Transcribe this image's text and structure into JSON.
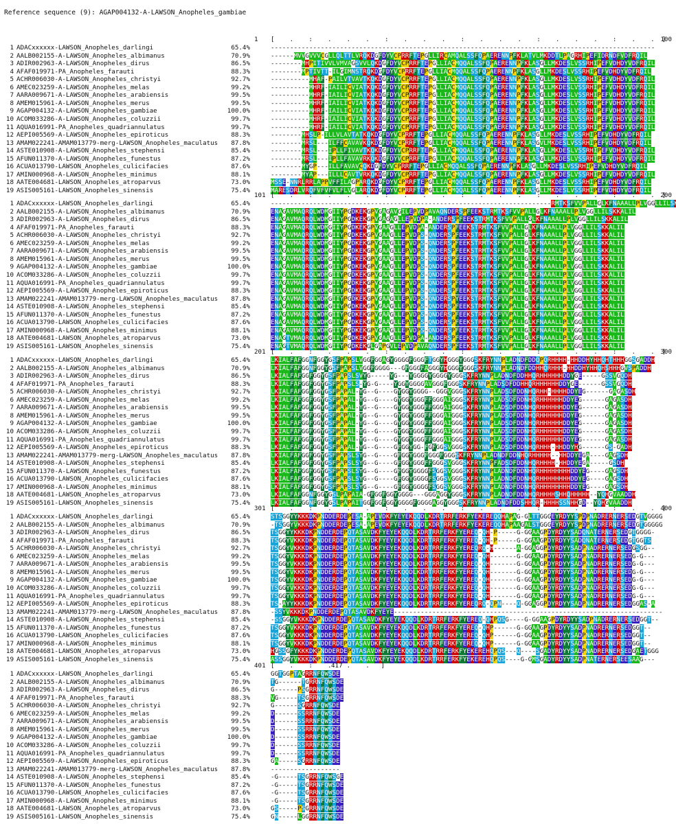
{
  "title": "Reference sequence (9): AGAP004132-A-LAWSON_Anopheles_gambiae",
  "sequences": [
    {
      "n": "1",
      "name": "ADACxxxxxx-LAWSON_Anopheles_darlingi",
      "pct": "65.4%"
    },
    {
      "n": "2",
      "name": "AALB002155-A-LAWSON_Anopheles_albimanus",
      "pct": "70.9%"
    },
    {
      "n": "3",
      "name": "ADIR002963-A-LAWSON_Anopheles_dirus",
      "pct": "86.5%"
    },
    {
      "n": "4",
      "name": "AFAF019971-PA_Anopheles_farauti",
      "pct": "88.3%"
    },
    {
      "n": "5",
      "name": "ACHR006030-A-LAWSON_Anopheles_christyi",
      "pct": "92.7%"
    },
    {
      "n": "6",
      "name": "AMEC023259-A-LAWSON_Anopheles_melas",
      "pct": "99.2%"
    },
    {
      "n": "7",
      "name": "AARA009671-A-LAWSON_Anopheles_arabiensis",
      "pct": "99.5%"
    },
    {
      "n": "8",
      "name": "AMEM015961-A-LAWSON_Anopheles_merus",
      "pct": "99.5%"
    },
    {
      "n": "9",
      "name": "AGAP004132-A-LAWSON_Anopheles_gambiae",
      "pct": "100.0%"
    },
    {
      "n": "10",
      "name": "ACOM033286-A-LAWSON_Anopheles_coluzzii",
      "pct": "99.7%"
    },
    {
      "n": "11",
      "name": "AQUA016991-PA_Anopheles_quadriannulatus",
      "pct": "99.7%"
    },
    {
      "n": "12",
      "name": "AEPI005569-A-LAWSON_Anopheles_epiroticus",
      "pct": "88.3%"
    },
    {
      "n": "13",
      "name": "AMAM022241-AMAM013779-merg-LAWSON_Anopheles_maculatus",
      "pct": "87.8%"
    },
    {
      "n": "14",
      "name": "ASTE010908-A-LAWSON_Anopheles_stephensi",
      "pct": "85.4%"
    },
    {
      "n": "15",
      "name": "AFUN011370-A-LAWSON_Anopheles_funestus",
      "pct": "87.2%"
    },
    {
      "n": "16",
      "name": "ACUA013790-LAWSON_Anopheles_culicifacies",
      "pct": "87.6%"
    },
    {
      "n": "17",
      "name": "AMIN000968-A-LAWSON_Anopheles_minimus",
      "pct": "88.1%"
    },
    {
      "n": "18",
      "name": "AATE004681-LAWSON_Anopheles_atroparvus",
      "pct": "73.0%"
    },
    {
      "n": "19",
      "name": "ASIS005161-LAWSON_Anopheles_sinensis",
      "pct": "75.4%"
    }
  ],
  "blocks": [
    {
      "start": "1",
      "end": "100",
      "ruler": "[    .    :    .    .    .    :    .    .    .    :    .    .    .    :    .    .    .    :    .    .  ]",
      "rows": [
        "----------------------------------------------------------------------------------------------------",
        "------MVVGVVVCGLLQLTTLVRQKDGFDYVCPRRFTEPGLLIRCAMQALSSFQPAERENNPFKLATVLMKDDTLPAGRHIPEFIDRNDFVDFRQIL",
        "--------MHPITIVVLVMVAGSVVLQKDGFDYVCPRRFTEPGLLIACMQQALSSFQPAERENNPFKLASGLLMKDESLVSSRHIPEFVDHDYVDFRQIL",
        "--------MPTIVTT-ILGIMNSTRQKDGFDYVCPRRFTEPGLLIACMQQALSSFQPAERENNPFKLASGLLMKDESLVSSRHIPEFVDHDYVDFRQIL",
        "----------MHAF-PAILVTVAVTKQKDGFDYVCPRRFTEPGLLIACMQQALSSFQPAERENNPFKLASGLLMKDESLVSSRHIPEFVDHDYVDFRQIL",
        "----------MHRF-IAILICVIATKQKDGFDYVCPRRFTEPGLLIACMQQALSSFQPAERENNPFKLASGLLMKDESLVSSRHIPEFVDHDYVDFRQIL",
        "----------MHRF-IAILICVIATKQKDGFDYVCPRRFTEPGLLIACMQQALSSFQPAERENNPFKLASGLLMKDESLVSSRHIPEFVDHDYVDFRQIL",
        "----------MHRF-IAILICVIATKQKDGFDYVCPRRFTEPGLLIACMQQALSSFQPAERENNPFKLASGLLMKDESLVSSRHIPEFVDHDYVDFRQIL",
        "----------MHRF-IAILICVIATKQKDGFDYVCPRRFTEPGLLIACMQQALSSFQPAERENNPFKLASGLLMKDESLVSSRHIPEFVDHDYVDFRQIL",
        "----------MHRF-IAILICVIATKQKDGFDYVCPRRFTEPGLLIACMQQALSSFQPAERENNPFKLASGLLMKDESLVSSRHIPEFVDHDYVDFRQIL",
        "----------MHRF-IAILICVIATKQKDGFDYVCPRRFTEPGLLIACMQQALSSFQPAERENNPFKLASGLLMKDESLVSSRHIPEFVDHDYVDFRQIL",
        "--------MHSLP-ILLVLAVTATKQKDGFDYVCPRRFTEPGLLIACMQQALSSFQPAERENNPFKLASGLLMKDESLVSSRHIPEFVDHDYVDFRQIL",
        "--------MRSL---ILFFCAVAVKQKDGFDYVCPRRFTEPGLLIACMQQALSSFQPAERENNPFKLASGVLMKDESLVSSRHIPEFVDHDYVDFRQIL",
        "--------MRSL---IPLLFIVAVTKQKDGFDYVCPRRFTEPGLLIACMQQALSSFQPAERENNPFKLASGLLMKDESLVSSRHIPEFVDHDYVDFRQIL",
        "--------MRSL---IPLLFAVAVRKQKDGFDYVCPRRFTEPGLLIACMQQALSSFQPAERENNPFKLASGLLMKDESLVSSRHIPEFVDHDYVDFRQIL",
        "--------MYGP---ILLFAVAVCQKDGFDYVCPRRFTEPGLLIACMQQALSSFQPAERENNPFKLASGLLMKDESLVSSRHIPEFVDHDYVDFRQIL",
        "--------MYAP---ILLLCAVTVRKQKDGFDYVCPRRFTEPGLLIACMQQALSSFQPAERENNPFKLASGLLMKDESLVSSRHIPEFVDHDYVDFRQIL",
        "MSSE-NNRLRRLAPPVFFILAGPARQKDGFDYVCPRRFTEPGLLIACMQQALSSFQPAERENNPFKLASGLLMKDESLVSSRHIPEFVDHDYVDFRQIL",
        "MARESDRLVRQFVFVFVLFLVGLARQKDGFDYVCPRRFTEPGLLIACMQQALSSFQPAERENNPFKLASGLLMKDESLVSSRHIPEFVDHDYVDFRQIL"
      ]
    },
    {
      "start": "101",
      "end": "200",
      "ruler": "[    .    :    .    .    .    :    .    .    .    :    .    .    .    :    .    .    .    :    .    .  ]",
      "rows": [
        "-------------------------------------------------------------------------RMTKSFVVPALLGLKFNAAALLPLVGGLLILSKKALIL",
        "ENAGAVMAQRQLWDMGIIYPGDKEKGPVGAGAVGILEPVDPAVAQNDERSPFEEKSTRMTKSFVVPALLGLKFNAAALLPLVGGLLILSKKALIL",
        "ENAGAVMAQRQLWDMGIIYPGDKEKGPVGAGAGLLEPVDPA-ANDERSPFEEKSTRMTKSFVVPALLGLKFNAAALLPLVGGLLILSKKALIL",
        "ENAGAVMAQRQLWDMGIIYPGDKEKGPVGAAGLLEPVDPA-ANDERSPFEEKSTRMTKSFVVPALLGLKFNAAALLPLVGGLLILSKKALIL",
        "ENAGAVMAQRQLWDMGIIYPGDKEKGPVGAAGLLEPVDPS-QNDERSPFEEKSTRMTKSFVVPALLGLKFNAAALLPLVGGLLILSKKALIL",
        "ENAGAVMAQRQLWDMGIIYPGDKEKGPVGAAGLLEPVDPS-QNDERSPFEEKSTRMTKSFVVPALLGLKFNAAALLPLVGGLLILSKKALIL",
        "ENAGAVMAQRQLWDMGIIYPGDKEKGPVGAAGLLEPVDPS-QNDERSPFEEKSTRMTKSFVVPALLGLKFNAAALLPLVGGLLILSKKALIL",
        "ENAGAVMAQRQLWDMGIIYPGDKEKGPVGAAGLLEPVDPS-QNDERSPFEEKSTRMTKSFVVPALLGLKFNAAALLPLVGGLLILSKKALIL",
        "ENAGAVMAQRQLWDMGIIYPGDKEKGPVGAAGLLEPVDPS-QNDERSPFEEKSTRMTKSFVVPALLGLKFNAAALLPLVGGLLILSKKALIL",
        "ENAGAVMAQRQLWDMGIIYPGDKEKGPVGAAGLLEPVDPS-QNDERSPFEEKSTRMTKSFVVPALLGLKFNAAALLPLVGGLLILSKKALIL",
        "ENAGAVMAQRQLWDMGIIYPGDKEKGPVGAAGLLEPVDPS-QNDERSPFEEKSTRMTKSFVVPALLGLKFNAAALLPLVGGLLILSKKALIL",
        "ENAGAVMAQRQLWDMGIIYPGDKEKGPVGAAGLLEPVDPS-QNDERSPFEEKSTRMTKSFVVPALLGLKFNAAALLPLVGGLLILSKKALIL",
        "ENAGAVMAQRQLWDMGIIYPGDKEKGPVGAAGLLEPVDPS-QNDERSPYEEKSTRMTKSFVVPALLGLKFNAAALLPLVGGLLILSKKALIL",
        "ENAGAVMAQRQLWDMGIIYPGDKEKGPVGAAGLLEPVDPS-QNDERSPFEEKSTRMTKSFVVPALLGLKFNAAALLPLVGGLLILSKKALIL",
        "ENAGAVMAQRQLWDMGIIYPGDKEKGPVGAAGLLEPVDPS-QNDERSPFEEKSTRMTKSFVVPALLGLKFNAAALLPLVGGLLILSKKALIL",
        "ENAGAVMAQRQLWDMGIIYPGDKEKGPVGAAGLLEPVDPS-QNDERSPFEEKSTRMTKSFVVPALLGLKFNAAALLPLVGGLLILSKKALIL",
        "ENAGAVMAQRQLWDMGIIYPGDKEKGPVGAAGLLEPVDPS-QNDERSPFEEKSTRMTKSFVVPALLGLKFNAAALLPLVGGLLILSKKALIL",
        "ENAGTVMAQRQLWDMGIIYPGDKEKGPVGAAGLLEPVDPA-ANDERSPFEEKSTRMTKSFVVPALLGLKFNAAALLPLVGGLLILSKKALIL",
        "ENAGTVMAQRQLWDMGIIYPGDKEKGLGAPGVLEPVDPAVAQNDERSPFEEKSTRMTKSFVVPALLGLKFNAAALLPLVGGLLILSKKALIL"
      ]
    },
    {
      "start": "201",
      "end": "300",
      "ruler": "[    .    :    .    .    .    :    .    .    .    :    .    .    .    :    .    .    .    :    .    .  ]",
      "rows": [
        "LKIALFAFGGNFGGYGSFPAPSLVGGFGGAGYGGGGFGGGFTGGYHGGGYGGGSKFRYNNPLADNDFDDQPQRHHHH-HHDDHYHHQHTHHHGGSGADDH",
        "LKIALFAFGGNFGGYGSFPAPSLVGGFGGGG---GFGGGFAGGGYHGGGYGGGSKFRYNNPLADNDFDDHHQRHHH-HHDDHYHHQHSHHHGVSPADDH",
        "LKIALFAFGGFGGYGSFPAPSLSVYG-----YG---YGGGGYGGGGYGGGSKFRYNNPLADNDFDDHHQRHHHHHHDDYGE-----GSSVGQDH",
        "LKIALFAFGGFGGYGSFPAPSLS-YG-G----YGGYGGGGAVGGGFGGGSKFRYNNPLADSDFDDHHQRHHHHHHDDYGE------GSSVGQDH",
        "LKIALFAFGGFGGYGSFPAPAL-YG--G----GYGGYGGGG--GGGVGGGSKFRYNNPLADSDFDDNHQRHH-HHHHDDYEG------GAGASDH",
        "LKIALFAFGGFGGYGSFPAPAL-YG--G----GYGGYGGGFFGGGAIGGGSKFRYNNPLADSDFDDNHQRHHHHHHDDYEG------GAGASDH",
        "LKIALFAFGGFGGYGSFPAPAL-YG--G----GYGGYGGGFFGGGAIGGGSKFRYNNPLADSDFDDNHQRHHHHHHDDYEG------GAGASDH",
        "LKIALFAFGGFGGYGSFPAPAL-YG--G----GYGGYGGGFFGGGAIGGGSKFRYNNPLADSDFDDNHQRHHHHHHDDYEG------GAGASDH",
        "LKIALFAFGGFGGYGSFPAPAL-YG--G----GYGGYGGGFFGGGAIGGGSKFRYNNPLADSDFDDNHQRHHHHHHDDYEG------GAGASDH",
        "LKIALFAFGGFGGYGSFPAPAL-YG--G----GYGGYGGGFFGGGAIGGGSKFRYNNPLADSDFDDNHQRHHHHHHDDYEG------GAGASDH",
        "LKIALFAFGGFGGYGSFPAPAL-YG--G----GYGGYGGGFFGGGAIGGGSKFRYNNPLADSDFDDNHQRHHHHHHDDYEG------GAGASDH",
        "LKIALFAFGGFGGYGSFPAPAL-YG--G----GFGGYGG-FGFGGSVGGGSKFRYNNPLADSDFDDNHQRHHH-HHDDYHG------GS-GADH",
        "LKIALFAFGGFGGYGSFPAPSLSYG--G----GFGGYGGGFGGGFGGGSKFRYNNPLADNDFDDNHQRHHHHH--HHDDYEGA----GAGSDH",
        "LKIALFAFGGFGGYGSFPAPSLSYG--G----GFGGYGGGFFGGGSVGGGSKFRYNNPFADSDFDDNHQRHHHH-HHDDYEGA-----GSDH",
        "LKIALFAFGGFGGYGSFPAPSLSYG--G----GFGGYGGGGFSGGSVGGGSKFRYNNPLADNDFDDNHQRHHHHHHHHDDYEG----GAGSDH",
        "LKIALFAFGGFGGYGSFPAPSLSYG--G----GFGGYGGGGFSGGSVGGGSKFRYNNPLADNDFDDNHQRHHHHHHHHDDYEG----GAGSDH",
        "LKIALFAFGGFGGYGSFPAPSLSYG--G----GFGGYGGGGFSGGSVGGGSKFRYNNPLADNDFDDNHQRHHHHHHHHDDYEG----GAGSDH",
        "LKIALFAFGGNFGGYGSLPAPAIA-GFGGFGGYGGGG---GGGAGGYGGGSKFRYNNPLADNDFDDNHQRHHHHSHHQHHHHH--YQHGVAADDH",
        "LKIALFAFGGNFGGYGSLPAPAITGGFGGFGGYGGGGFGGGGAGGYGGGSKFRYNNPLADNDFDDSHHQR-HHHHSSNHHGD--YQHGVAADDH"
      ]
    },
    {
      "start": "301",
      "end": "400",
      "ruler": "[    .    :    .    .    .    :    .    .    .    :    .    .    .    :    .    .    .    :    .    .  ]",
      "rows": [
        "STSGGYYKKKDKPNDDERDEPESA-APEVDKFYEYEKQQDLKDRTRRFERKFYEKEREQQHAPAG-GLTTGGGEYRDYYSPDPNADRERNERSEDGTVGGGG",
        "-TSGGYVKKKDKPNDDERDEPESA-APEVDKFYEYEKQQDLKDRTRRFERKFYEKEREQQHAPAAGALSTGGGEYRDYYSPDPNADRERNERSEDGTGGGGG",
        "TSGGYYKKKDKPNDDERDEPQTASAVDKFYEYEKQQDLKDRTRRFERKFYEREQ-QH-P-----G-GGAAGPDYRDYYSADQNATERNERSEDGTGGGG-",
        "TSGGYVKKKDKPNDDERDEPQTASAVDKFYEYEKQQDLKDRTRRFERKFYEREQ-QH-P-----G-GGAAGPDYRDYYSADQNATERNERSEDGTGGTS",
        "TSGGYVKKKDKPNDDERDEPQTASAVDKFYEYEKQQDLKDRTRRFERKFYEREQRQ-H------A-GGAGGPDYRDYYSADPNADRERNERSEDGSGG--",
        "TSGGYVKKKDKPNDDERDEPQTASAVDKFYEYEKQQDLKDRTRRFERKFYEREQ-QH-------G-GGAAGPDYRDYYSADPNADRERNERSEDG-G---",
        "TSGGYVKKKDKPNDDERDEPQTASAVDKFYEYEKQQDLKDRTRRFERKFYEREQ-QH-------G-GGAAGPDYRDYYSADPNADRERNERSEDG-G---",
        "TSGGYVKKKDKPNDDERDEPQTASAVDKFYEYEKQQDLKDRTRRFERKFYEREQ-QH-------G-GGAAGPDYRDYYSADPNADRERNERSEDG-G---",
        "TSGGYVKKKDKPNDDERDEPQTASAVDKFYEYEKQQDLKDRTRRFERKFYEREQ-QH-------G-GGAAGPDYRDYYSADPNADRERNERSEDG-G---",
        "TSGGYVKKKDKPNDDERDEPQTASAVDKFYEYEKQQDLKDRTRRFERKFYEREQ-QH-------G-GGAAGPDYRDYYSADPNADRERNERSEDG-G---",
        "TSGGYVKKKDKPNDDERDEPQTASAVDKFYEYEKQQDLKDRTRRFERKFYEREQ-QH-------G-GGAAGPDYRDYYSADPNADRERNERSEDG-G---",
        "TS-AYYKKKDKPNDDERDEPQTASAVDKFYEYEKQQDLKDRTRRFERKFYEREQRQ-QPN----Q-GGAGGPDYRDYYSADPNADRERNERSEDGGAS-A",
        "-SSYVKKKDKPNDDERDEPQTASAVDKFYEYE----------------------------------------------------------------------",
        "-SSGGYVKKKDKPNDDERDEPQTASAVDKFYEYEKQQDLKDRTRRFERKFYEREQ-QHPQSG----G-GGAAGPDYRDYYSADPNADRERNERSEDGGT--",
        "TSGGYVKKKDKPNDDERDEPQTASAVDKFYEYEKQQDLKDRTRRFERKFYEREQ-QHP------G-GGAAGPDYRDYYSADPNADRERNERSEDGGT--",
        "TSGGYVKKKDKPNDDERDEPQTASAVDKFYEYEKQQDLKDRTRRFERKFYEREQ-QHP------G-GGAAGPDYRDYYSADPNADRERNERSEDGGT--",
        "TSGGYVKKKDKPNDDERDEPQTASAVDKFYEYEKQQDLKDRTRRFERKFYEREQ-QHP------G-GGAAGPDYRDYYSADPNADRERNERSEDGGT--",
        "HGSSGFYKKKDKPNDDERDEPQTASAVDKFYEYEKQQDLKDRTRRFERKFYEKEREHQPQS---Q----SGADYRDYYSADPNADRERNERSEDGAETGGG",
        "ASSGGYVKKKDKPNDDERDEPQTASAVDKFYEYEKQQDLKDRTRRFERKFYEKEREHQPQS----G-GMSGADYRDYYSADPNATERNERSEESAAG---"
      ]
    },
    {
      "start": "401",
      "end": "417",
      "ruler": "[    .    :    .    .    .   ]",
      "rows": [
        "GGTGGPTAGRRNFQWSDE",
        "TG------TGRRNFQWSDE",
        "G------PSGRRNFQWSDE",
        "VG-----TSGRRNFQWSDE",
        "G------SGRRNFQWSDE",
        "D------SSRRNFQWSDE",
        "D------SSRRNFQWSDE",
        "D------SSRRNFQWSDE",
        "D------SSRRNFQWSDE",
        "D------SSRRNFQWSDE",
        "D------SSRRNFQWSDE",
        "GA-----SGRRNFQWSDE",
        "------------------",
        "-G-----TSGRRNFQWSGE",
        "-G-----TSGRRNFQWSDE",
        "-G-----TSGRRNFQWSDE",
        "-G-----TSGRRNFQWSDE",
        "GS-----PSGRRNFQWSDE",
        "GN-----LGGRRNFQWSDE"
      ]
    }
  ],
  "colors": {
    "hydrophobic": "#1bb81b",
    "aromatic": "#0e7a35",
    "positive": "#cc0000",
    "negative": "#3a1fbf",
    "polar": "#18a3d9",
    "cys": "#f2d50f",
    "pro": "#f2d50f",
    "gly": "#ffffff",
    "text_dark": "#111111",
    "text_light": "#ffffff"
  }
}
